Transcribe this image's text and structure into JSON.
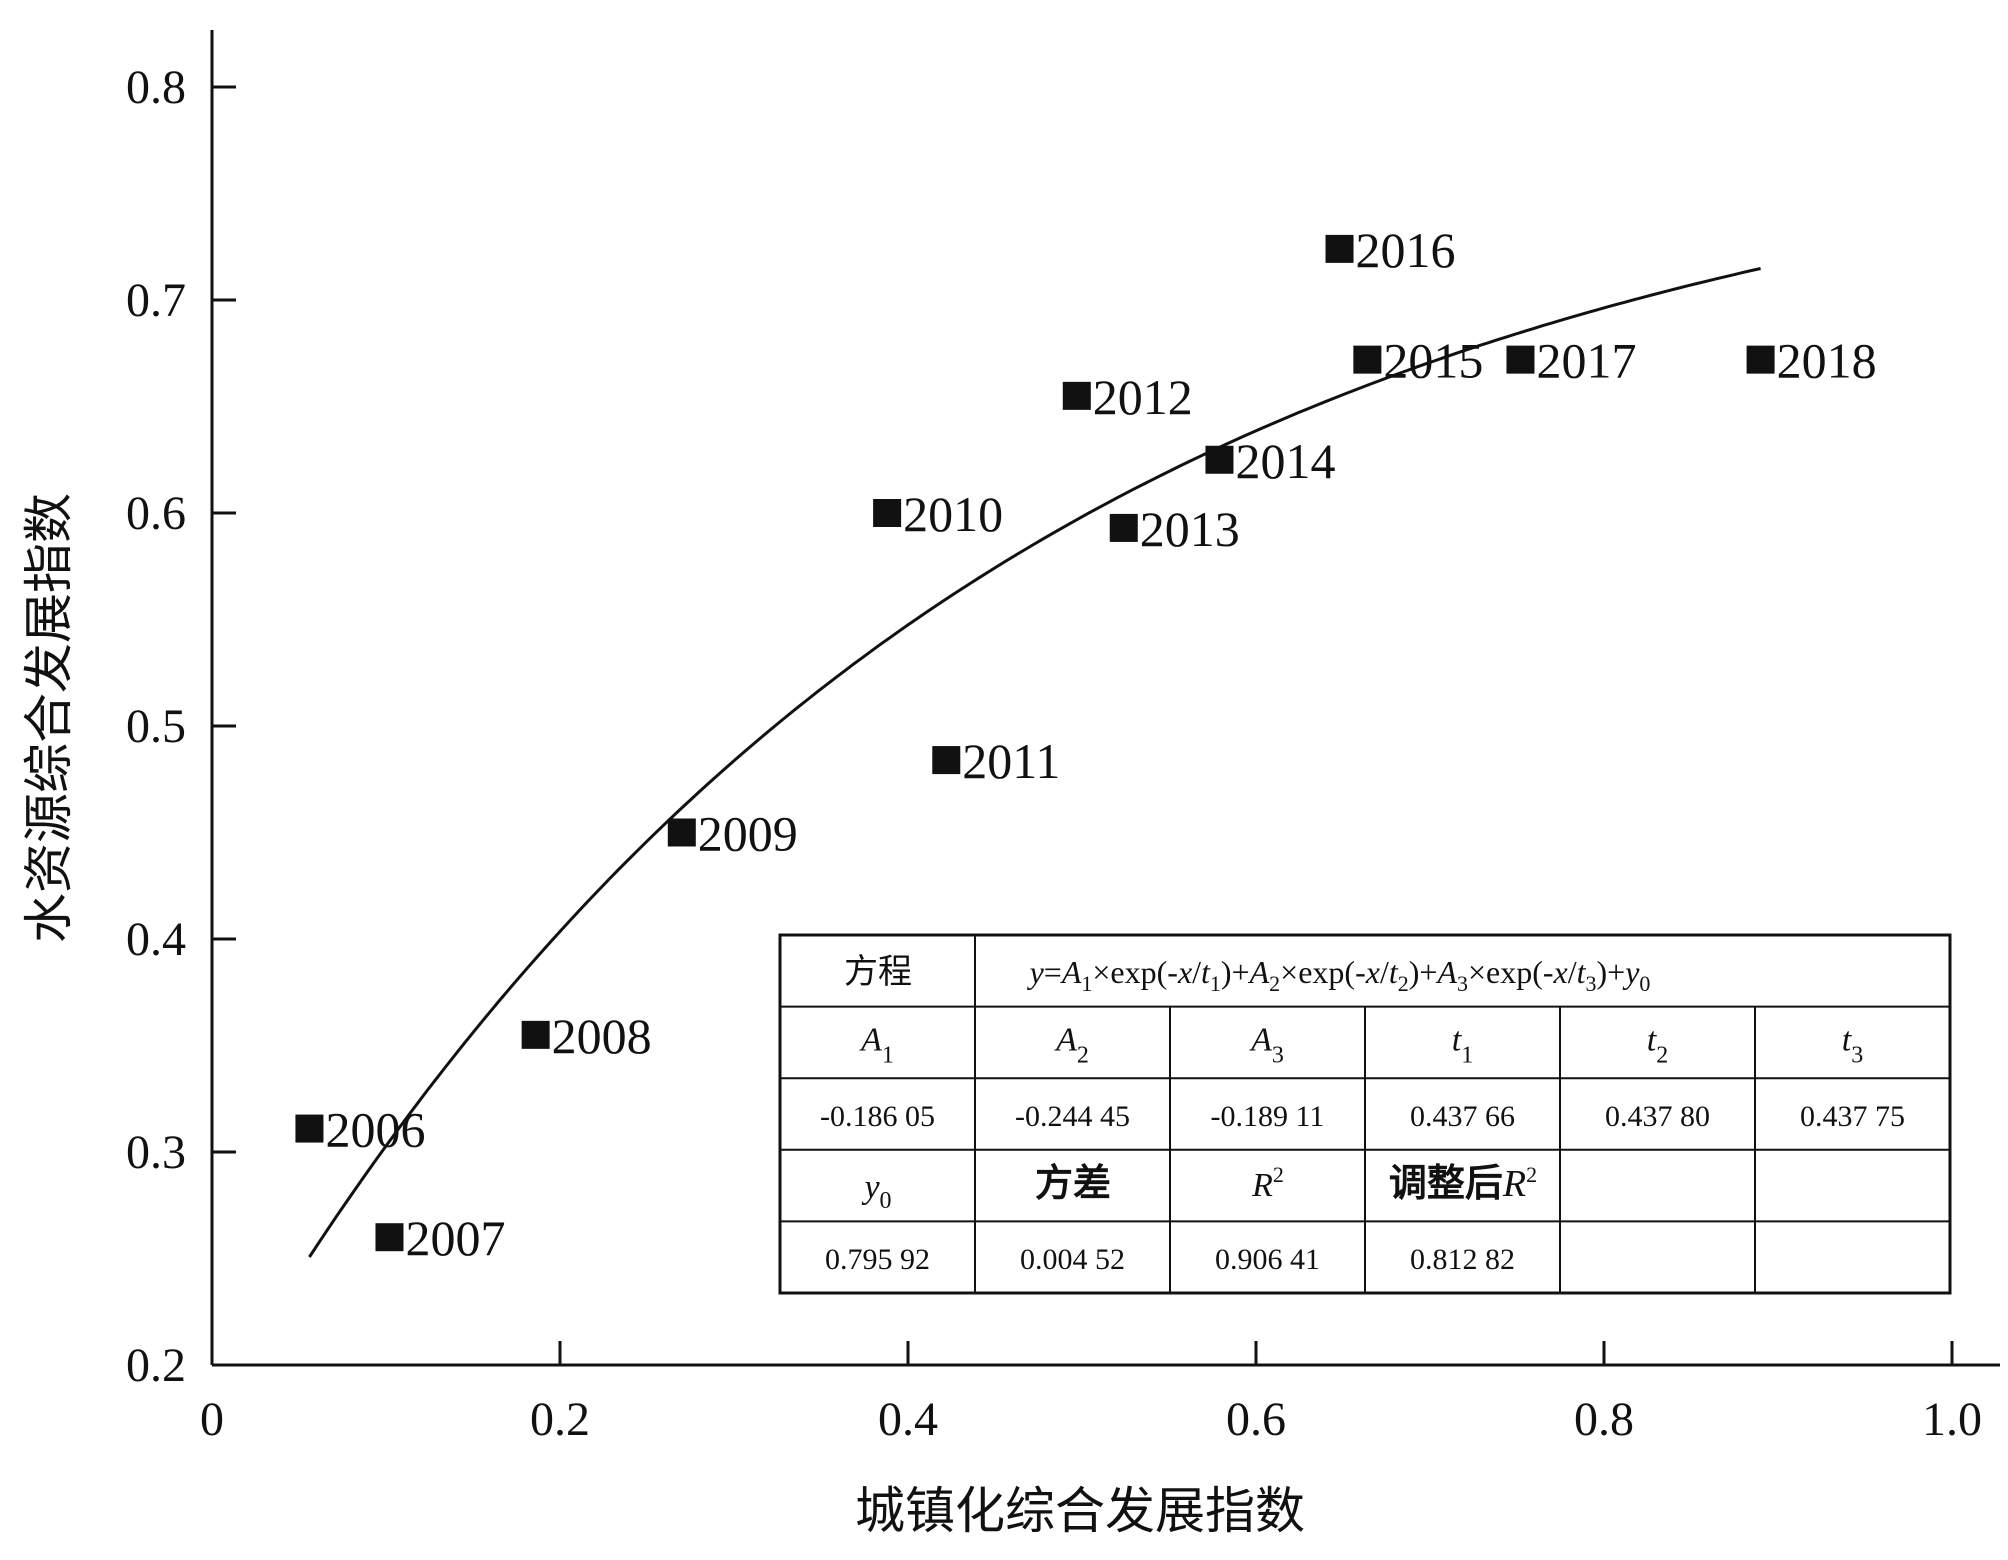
{
  "chart_data": {
    "type": "scatter",
    "xlabel": "城镇化综合发展指数",
    "ylabel": "水资源综合发展指数",
    "xlim": [
      0,
      1.0
    ],
    "ylim": [
      0.2,
      0.8
    ],
    "x_ticks": [
      0,
      0.2,
      0.4,
      0.6,
      0.8,
      1.0
    ],
    "x_tick_labels": [
      "0",
      "0.2",
      "0.4",
      "0.6",
      "0.8",
      "1.0"
    ],
    "y_ticks": [
      0.2,
      0.3,
      0.4,
      0.5,
      0.6,
      0.7,
      0.8
    ],
    "y_tick_labels": [
      "0.2",
      "0.3",
      "0.4",
      "0.5",
      "0.6",
      "0.7",
      "0.8"
    ],
    "grid": false,
    "points": [
      {
        "label": "2006",
        "x": 0.056,
        "y": 0.311
      },
      {
        "label": "2007",
        "x": 0.102,
        "y": 0.26
      },
      {
        "label": "2008",
        "x": 0.186,
        "y": 0.355
      },
      {
        "label": "2009",
        "x": 0.27,
        "y": 0.45
      },
      {
        "label": "2010",
        "x": 0.388,
        "y": 0.6
      },
      {
        "label": "2011",
        "x": 0.422,
        "y": 0.484
      },
      {
        "label": "2012",
        "x": 0.497,
        "y": 0.655
      },
      {
        "label": "2013",
        "x": 0.524,
        "y": 0.593
      },
      {
        "label": "2014",
        "x": 0.579,
        "y": 0.625
      },
      {
        "label": "2015",
        "x": 0.664,
        "y": 0.672
      },
      {
        "label": "2016",
        "x": 0.648,
        "y": 0.724
      },
      {
        "label": "2017",
        "x": 0.752,
        "y": 0.672
      },
      {
        "label": "2018",
        "x": 0.89,
        "y": 0.672
      }
    ],
    "fit_curve": {
      "type": "line",
      "x_range": [
        0.056,
        0.89
      ],
      "params": {
        "A1": -0.18605,
        "A2": -0.24445,
        "A3": -0.18911,
        "t1": 0.43766,
        "t2": 0.4378,
        "t3": 0.43775,
        "y0": 0.79592
      }
    },
    "marker_color": "#111111",
    "curve_color": "#111111"
  },
  "fit_table": {
    "equation_label": "方程",
    "equation": {
      "y": "y",
      "eq": "=",
      "A": "A",
      "x": "x",
      "t": "t",
      "i1": "1",
      "i2": "2",
      "i3": "3",
      "i0": "0",
      "times_exp": "×exp(-",
      "slash": "/",
      "close": ")",
      "plus": "+"
    },
    "headers": [
      {
        "sym": "A",
        "sub": "1"
      },
      {
        "sym": "A",
        "sub": "2"
      },
      {
        "sym": "A",
        "sub": "3"
      },
      {
        "sym": "t",
        "sub": "1"
      },
      {
        "sym": "t",
        "sub": "2"
      },
      {
        "sym": "t",
        "sub": "3"
      }
    ],
    "values_row1": [
      "-0.186 05",
      "-0.244 45",
      "-0.189 11",
      "0.437 66",
      "0.437 80",
      "0.437 75"
    ],
    "y0_sym": "y",
    "y0_sub": "0",
    "variance_label": "方差",
    "r2_sym": "R",
    "r2_sup": "2",
    "adj_r2_label": "调整后",
    "values_row2": [
      "0.795 92",
      "0.004 52",
      "0.906 41",
      "0.812 82"
    ]
  }
}
